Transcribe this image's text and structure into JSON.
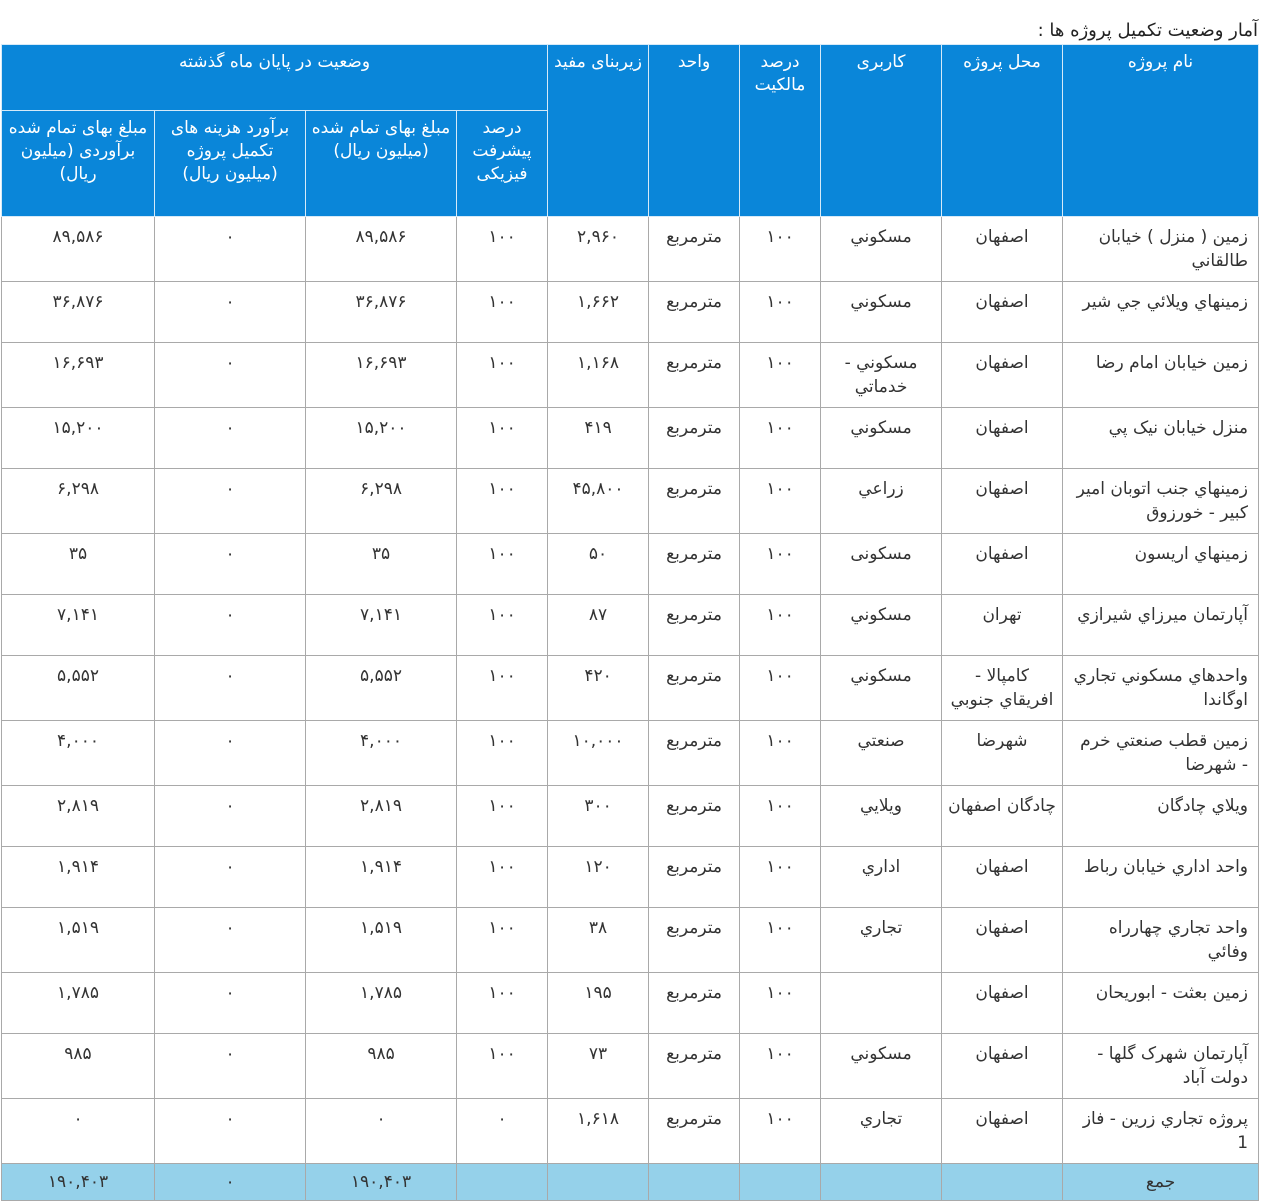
{
  "caption": "آمار وضعیت تکمیل پروژه ها :",
  "headers": {
    "name": "نام پروژه",
    "location": "محل پروژه",
    "usage": "كاربری",
    "ownership": "درصد مالکیت",
    "unit": "واحد",
    "area": "زیربنای مفید",
    "status_group": "وضعیت در پایان ماه گذشته",
    "progress": "درصد پیشرفت فیزیکی",
    "completed_cost": "مبلغ بهای تمام شده (میلیون ریال)",
    "remaining_cost": "برآورد هزینه های تکمیل پروژه (میلیون ریال)",
    "estimated_cost": "مبلغ بهای تمام شده برآوردی (میلیون ریال)"
  },
  "rows": [
    {
      "name": "زمین ( منزل ) خیابان طالقاني",
      "location": "اصفهان",
      "usage": "مسكوني",
      "ownership": "۱۰۰",
      "unit": "مترمربع",
      "area": "۲,۹۶۰",
      "progress": "۱۰۰",
      "completed": "۸۹,۵۸۶",
      "remaining": "۰",
      "estimated": "۸۹,۵۸۶"
    },
    {
      "name": "زمینهاي ويلائي جي شير",
      "location": "اصفهان",
      "usage": "مسكوني",
      "ownership": "۱۰۰",
      "unit": "مترمربع",
      "area": "۱,۶۶۲",
      "progress": "۱۰۰",
      "completed": "۳۶,۸۷۶",
      "remaining": "۰",
      "estimated": "۳۶,۸۷۶"
    },
    {
      "name": "زمین خیابان امام رضا",
      "location": "اصفهان",
      "usage": "مسكوني - خدماتي",
      "ownership": "۱۰۰",
      "unit": "مترمربع",
      "area": "۱,۱۶۸",
      "progress": "۱۰۰",
      "completed": "۱۶,۶۹۳",
      "remaining": "۰",
      "estimated": "۱۶,۶۹۳"
    },
    {
      "name": "منزل خیابان نیک پي",
      "location": "اصفهان",
      "usage": "مسكوني",
      "ownership": "۱۰۰",
      "unit": "مترمربع",
      "area": "۴۱۹",
      "progress": "۱۰۰",
      "completed": "۱۵,۲۰۰",
      "remaining": "۰",
      "estimated": "۱۵,۲۰۰"
    },
    {
      "name": "زمینهاي جنب اتوبان امیر کبیر - خورزوق",
      "location": "اصفهان",
      "usage": "زراعي",
      "ownership": "۱۰۰",
      "unit": "مترمربع",
      "area": "۴۵,۸۰۰",
      "progress": "۱۰۰",
      "completed": "۶,۲۹۸",
      "remaining": "۰",
      "estimated": "۶,۲۹۸"
    },
    {
      "name": "زمینهاي اریسون",
      "location": "اصفهان",
      "usage": "مسكونی",
      "ownership": "۱۰۰",
      "unit": "مترمربع",
      "area": "۵۰",
      "progress": "۱۰۰",
      "completed": "۳۵",
      "remaining": "۰",
      "estimated": "۳۵"
    },
    {
      "name": "آپارتمان میرزاي شیرازي",
      "location": "تهران",
      "usage": "مسكوني",
      "ownership": "۱۰۰",
      "unit": "مترمربع",
      "area": "۸۷",
      "progress": "۱۰۰",
      "completed": "۷,۱۴۱",
      "remaining": "۰",
      "estimated": "۷,۱۴۱"
    },
    {
      "name": "واحدهاي مسكوني تجاري اوگاندا",
      "location": "کامپالا - افریقاي جنوبي",
      "usage": "مسكوني",
      "ownership": "۱۰۰",
      "unit": "مترمربع",
      "area": "۴۲۰",
      "progress": "۱۰۰",
      "completed": "۵,۵۵۲",
      "remaining": "۰",
      "estimated": "۵,۵۵۲"
    },
    {
      "name": "زمین قطب صنعتي خرم - شهرضا",
      "location": "شهرضا",
      "usage": "صنعتي",
      "ownership": "۱۰۰",
      "unit": "مترمربع",
      "area": "۱۰,۰۰۰",
      "progress": "۱۰۰",
      "completed": "۴,۰۰۰",
      "remaining": "۰",
      "estimated": "۴,۰۰۰"
    },
    {
      "name": "ويلاي چادگان",
      "location": "چادگان اصفهان",
      "usage": "ويلايي",
      "ownership": "۱۰۰",
      "unit": "مترمربع",
      "area": "۳۰۰",
      "progress": "۱۰۰",
      "completed": "۲,۸۱۹",
      "remaining": "۰",
      "estimated": "۲,۸۱۹"
    },
    {
      "name": "واحد اداري خیابان رباط",
      "location": "اصفهان",
      "usage": "اداري",
      "ownership": "۱۰۰",
      "unit": "مترمربع",
      "area": "۱۲۰",
      "progress": "۱۰۰",
      "completed": "۱,۹۱۴",
      "remaining": "۰",
      "estimated": "۱,۹۱۴"
    },
    {
      "name": "واحد تجاري چهارراه وفائي",
      "location": "اصفهان",
      "usage": "تجاري",
      "ownership": "۱۰۰",
      "unit": "مترمربع",
      "area": "۳۸",
      "progress": "۱۰۰",
      "completed": "۱,۵۱۹",
      "remaining": "۰",
      "estimated": "۱,۵۱۹"
    },
    {
      "name": "زمین بعثت - ابوریحان",
      "location": "اصفهان",
      "usage": "",
      "ownership": "۱۰۰",
      "unit": "مترمربع",
      "area": "۱۹۵",
      "progress": "۱۰۰",
      "completed": "۱,۷۸۵",
      "remaining": "۰",
      "estimated": "۱,۷۸۵"
    },
    {
      "name": "آپارتمان شهرک گلها - دولت آباد",
      "location": "اصفهان",
      "usage": "مسكوني",
      "ownership": "۱۰۰",
      "unit": "مترمربع",
      "area": "۷۳",
      "progress": "۱۰۰",
      "completed": "۹۸۵",
      "remaining": "۰",
      "estimated": "۹۸۵"
    },
    {
      "name": "پروژه تجاري زرین - فاز 1",
      "location": "اصفهان",
      "usage": "تجاري",
      "ownership": "۱۰۰",
      "unit": "مترمربع",
      "area": "۱,۶۱۸",
      "progress": "۰",
      "completed": "۰",
      "remaining": "۰",
      "estimated": "۰"
    }
  ],
  "total": {
    "label": "جمع",
    "completed": "۱۹۰,۴۰۳",
    "remaining": "۰",
    "estimated": "۱۹۰,۴۰۳"
  },
  "colors": {
    "header_bg": "#0a86d9",
    "total_bg": "#95d1ea"
  }
}
